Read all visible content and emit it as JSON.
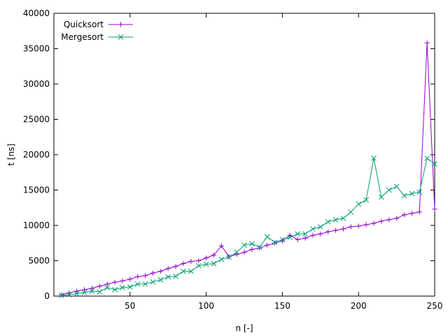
{
  "chart_data": {
    "type": "line",
    "title": "",
    "xlabel": "n [-]",
    "ylabel": "t [ns]",
    "xlim": [
      0,
      250
    ],
    "ylim": [
      0,
      40000
    ],
    "xticks": [
      50,
      100,
      150,
      200,
      250
    ],
    "yticks": [
      0,
      5000,
      10000,
      15000,
      20000,
      25000,
      30000,
      35000,
      40000
    ],
    "grid": false,
    "legend_position": "top-left",
    "series": [
      {
        "name": "Quicksort",
        "color": "#9400d3",
        "marker": "plus",
        "x": [
          5,
          10,
          15,
          20,
          25,
          30,
          35,
          40,
          45,
          50,
          55,
          60,
          65,
          70,
          75,
          80,
          85,
          90,
          95,
          100,
          105,
          110,
          115,
          120,
          125,
          130,
          135,
          140,
          145,
          150,
          155,
          160,
          165,
          170,
          175,
          180,
          185,
          190,
          195,
          200,
          205,
          210,
          215,
          220,
          225,
          230,
          235,
          240,
          245,
          250
        ],
        "y": [
          200,
          450,
          700,
          900,
          1100,
          1400,
          1700,
          1950,
          2150,
          2400,
          2750,
          2900,
          3250,
          3500,
          3900,
          4200,
          4600,
          4900,
          5000,
          5400,
          5800,
          7100,
          5600,
          5900,
          6200,
          6600,
          6800,
          7200,
          7500,
          7800,
          8600,
          8000,
          8200,
          8600,
          8800,
          9100,
          9300,
          9500,
          9800,
          9900,
          10100,
          10300,
          10600,
          10800,
          11000,
          11500,
          11700,
          11900,
          35800,
          12300
        ]
      },
      {
        "name": "Mergesort",
        "color": "#009e73",
        "marker": "cross",
        "x": [
          5,
          10,
          15,
          20,
          25,
          30,
          35,
          40,
          45,
          50,
          55,
          60,
          65,
          70,
          75,
          80,
          85,
          90,
          95,
          100,
          105,
          110,
          115,
          120,
          125,
          130,
          135,
          140,
          145,
          150,
          155,
          160,
          165,
          170,
          175,
          180,
          185,
          190,
          195,
          200,
          205,
          210,
          215,
          220,
          225,
          230,
          235,
          240,
          245,
          250
        ],
        "y": [
          100,
          200,
          350,
          500,
          700,
          600,
          1200,
          900,
          1200,
          1300,
          1700,
          1700,
          2000,
          2300,
          2700,
          2800,
          3500,
          3500,
          4300,
          4500,
          4600,
          5200,
          5500,
          6200,
          7200,
          7400,
          6900,
          8400,
          7600,
          8000,
          8300,
          8800,
          8800,
          9500,
          9800,
          10500,
          10800,
          11000,
          11900,
          13000,
          13600,
          19500,
          14000,
          15000,
          15500,
          14200,
          14500,
          14700,
          19500,
          18700
        ]
      }
    ]
  }
}
